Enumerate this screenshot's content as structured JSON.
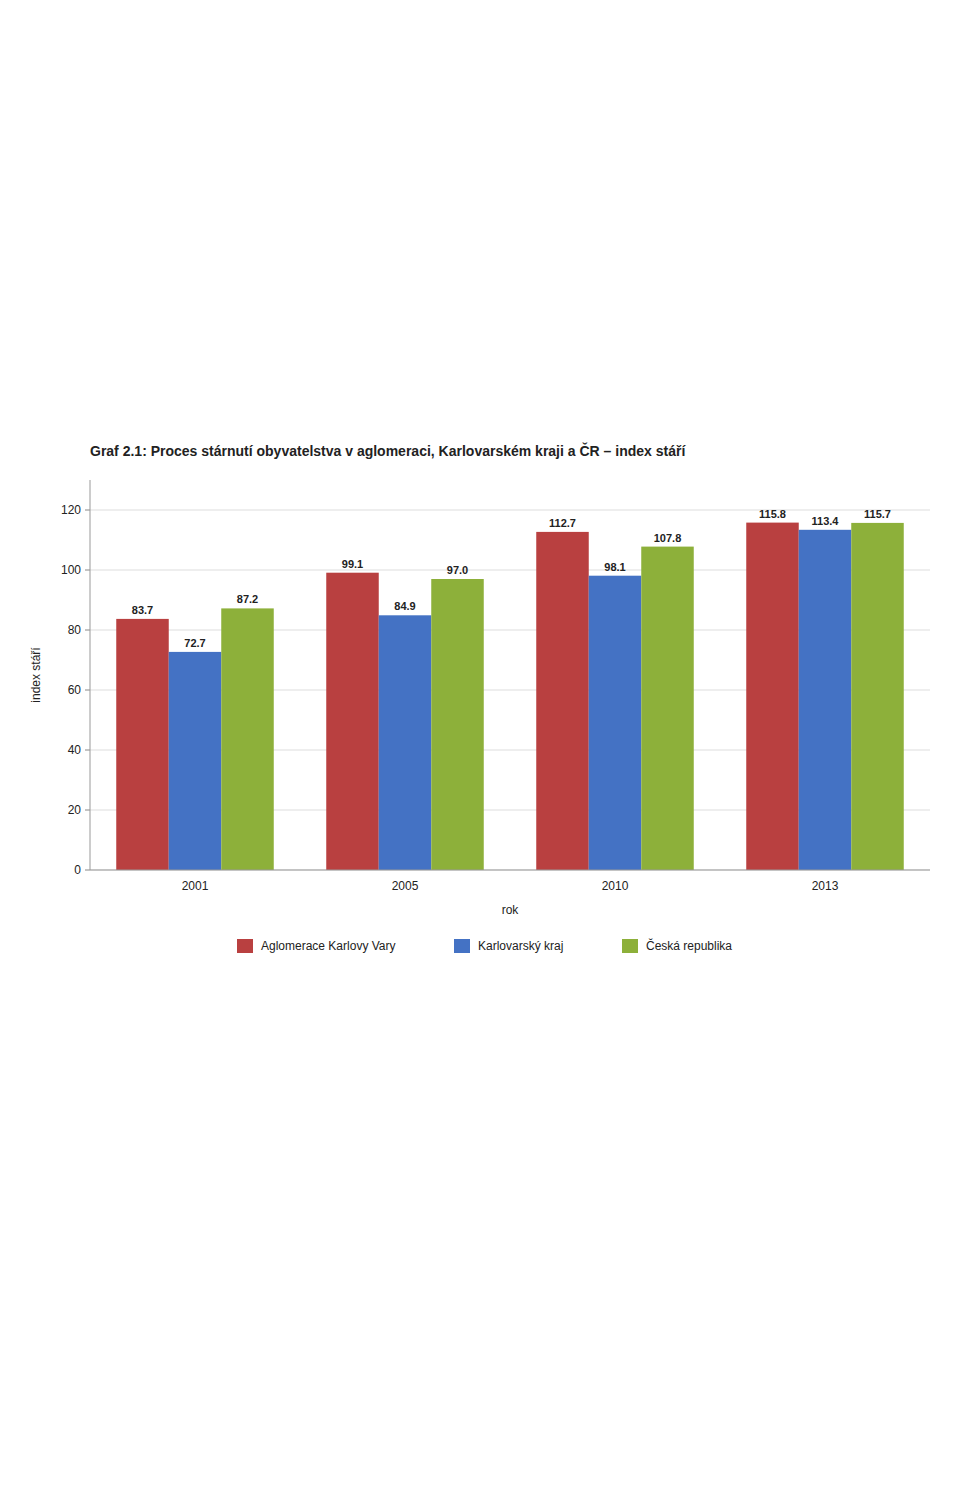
{
  "chart_data": {
    "type": "bar",
    "title": "Graf 2.1: Proces stárnutí obyvatelstva v aglomeraci, Karlovarském kraji a ČR – index stáří",
    "xlabel": "rok",
    "ylabel": "index stáří",
    "categories": [
      "2001",
      "2005",
      "2010",
      "2013"
    ],
    "series": [
      {
        "name": "Aglomerace Karlovy Vary",
        "color": "#B94040",
        "values": [
          83.7,
          99.1,
          112.7,
          115.8
        ]
      },
      {
        "name": "Karlovarský kraj",
        "color": "#4472C4",
        "values": [
          72.7,
          84.9,
          98.1,
          113.4
        ]
      },
      {
        "name": "Česká republika",
        "color": "#8DB03A",
        "values": [
          87.2,
          97.0,
          107.8,
          115.7
        ],
        "value_labels": [
          "87.2",
          "97.0",
          "107.8",
          "115.7"
        ]
      }
    ],
    "ylim": [
      0,
      130
    ],
    "yticks": [
      0,
      20,
      40,
      60,
      80,
      100,
      120
    ],
    "grid": true,
    "legend": "bottom",
    "data_labels": true
  }
}
